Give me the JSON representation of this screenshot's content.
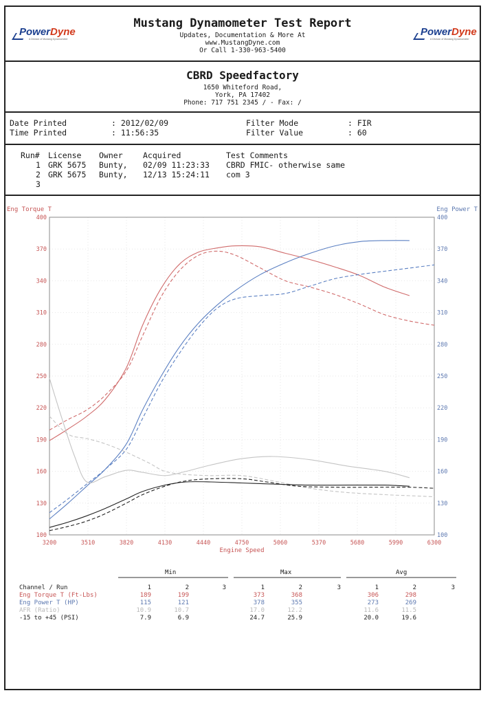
{
  "header": {
    "title": "Mustang Dynamometer Test Report",
    "line1": "Updates, Documentation & More At",
    "line2": "www.MustangDyne.com",
    "line3": "Or Call 1-330-963-5400",
    "logo_a": "Power",
    "logo_b": "Dyne",
    "logo_tag": "A Division of Mustang Dynamometer"
  },
  "shop": {
    "name": "CBRD Speedfactory",
    "address": "1650 Whiteford Road,",
    "city": "York, PA  17402",
    "phone": "Phone: 717 751 2345 /  - Fax:  /"
  },
  "meta": {
    "date_label": "Date Printed",
    "date_value": ": 2012/02/09",
    "time_label": "Time Printed",
    "time_value": ": 11:56:35",
    "filter_mode_label": "Filter Mode",
    "filter_mode_value": ": FIR",
    "filter_value_label": "Filter Value",
    "filter_value_value": ": 60"
  },
  "runs": {
    "headers": {
      "run": "Run#",
      "license": "License",
      "owner": "Owner",
      "acquired": "Acquired",
      "comments": "Test Comments"
    },
    "rows": [
      {
        "run": "1",
        "license": "GRK 5675",
        "owner": "Bunty,",
        "acquired": "02/09 11:23:33",
        "comments": "CBRD FMIC- otherwise same"
      },
      {
        "run": "2",
        "license": "GRK 5675",
        "owner": "Bunty,",
        "acquired": "12/13 15:24:11",
        "comments": "com 3"
      },
      {
        "run": "3",
        "license": "",
        "owner": "",
        "acquired": "",
        "comments": ""
      }
    ]
  },
  "chart_data": {
    "type": "line",
    "xlabel": "Engine Speed",
    "ylabel_left": "Eng Torque T",
    "ylabel_right": "Eng Power T",
    "xlim": [
      3200,
      6300
    ],
    "ylim": [
      100,
      400
    ],
    "x_ticks": [
      3200,
      3510,
      3820,
      4130,
      4440,
      4750,
      5060,
      5370,
      5680,
      5990,
      6300
    ],
    "y_ticks": [
      100,
      130,
      160,
      190,
      220,
      250,
      280,
      310,
      340,
      370,
      400
    ],
    "grid": true,
    "colors": {
      "torque": "#d06a6a",
      "power": "#5a7fc2",
      "afr": "#c4c4c4",
      "boost": "#222222"
    },
    "series": [
      {
        "name": "Eng Torque T (Ft-Lbs)",
        "run": 1,
        "style": "solid",
        "color": "#d06a6a",
        "x": [
          3200,
          3350,
          3500,
          3650,
          3820,
          3950,
          4100,
          4250,
          4400,
          4550,
          4700,
          4900,
          5100,
          5300,
          5500,
          5700,
          5900,
          6100
        ],
        "y": [
          189,
          200,
          212,
          228,
          258,
          298,
          333,
          356,
          367,
          371,
          373,
          372,
          366,
          360,
          353,
          345,
          334,
          326
        ]
      },
      {
        "name": "Eng Torque T (Ft-Lbs)",
        "run": 2,
        "style": "dashed",
        "color": "#d06a6a",
        "x": [
          3200,
          3350,
          3500,
          3650,
          3820,
          3950,
          4100,
          4250,
          4400,
          4550,
          4700,
          4900,
          5100,
          5300,
          5500,
          5700,
          5900,
          6100,
          6300
        ],
        "y": [
          199,
          209,
          218,
          232,
          255,
          288,
          325,
          350,
          364,
          368,
          364,
          352,
          340,
          334,
          327,
          318,
          308,
          302,
          298
        ]
      },
      {
        "name": "Eng Power T (HP)",
        "run": 1,
        "style": "solid",
        "color": "#5a7fc2",
        "x": [
          3200,
          3350,
          3500,
          3650,
          3820,
          3950,
          4100,
          4250,
          4400,
          4550,
          4700,
          4900,
          5100,
          5300,
          5500,
          5700,
          5900,
          6100
        ],
        "y": [
          115,
          130,
          146,
          162,
          186,
          218,
          250,
          278,
          300,
          317,
          331,
          346,
          357,
          366,
          373,
          377,
          378,
          378
        ]
      },
      {
        "name": "Eng Power T (HP)",
        "run": 2,
        "style": "dashed",
        "color": "#5a7fc2",
        "x": [
          3200,
          3350,
          3500,
          3650,
          3820,
          3950,
          4100,
          4250,
          4400,
          4550,
          4700,
          4900,
          5100,
          5300,
          5500,
          5700,
          5900,
          6100,
          6300
        ],
        "y": [
          121,
          134,
          148,
          162,
          181,
          210,
          244,
          272,
          296,
          314,
          323,
          326,
          328,
          335,
          342,
          346,
          349,
          352,
          355
        ]
      },
      {
        "name": "AFR (Ratio)",
        "run": 1,
        "style": "solid",
        "color": "#c4c4c4",
        "x": [
          3200,
          3300,
          3400,
          3500,
          3650,
          3820,
          3950,
          4130,
          4300,
          4500,
          4750,
          5000,
          5300,
          5600,
          5900,
          6100
        ],
        "y": [
          248,
          210,
          175,
          150,
          155,
          161,
          159,
          156,
          160,
          166,
          172,
          174,
          171,
          165,
          160,
          154
        ]
      },
      {
        "name": "AFR (Ratio)",
        "run": 2,
        "style": "dashed",
        "color": "#c4c4c4",
        "x": [
          3200,
          3350,
          3500,
          3650,
          3820,
          4000,
          4130,
          4300,
          4500,
          4750,
          5000,
          5300,
          5600,
          5900,
          6100,
          6300
        ],
        "y": [
          212,
          195,
          191,
          186,
          178,
          168,
          160,
          157,
          156,
          156,
          151,
          144,
          140,
          138,
          137,
          136
        ]
      },
      {
        "name": "-15 to +45 (PSI)",
        "run": 1,
        "style": "solid",
        "color": "#222222",
        "x": [
          3200,
          3350,
          3500,
          3650,
          3820,
          3950,
          4130,
          4300,
          4500,
          4750,
          5000,
          5300,
          5600,
          5900,
          6100
        ],
        "y": [
          107,
          112,
          118,
          125,
          134,
          141,
          147,
          150,
          150,
          149,
          148,
          147,
          147,
          147,
          146
        ]
      },
      {
        "name": "-15 to +45 (PSI)",
        "run": 2,
        "style": "dashed",
        "color": "#222222",
        "x": [
          3200,
          3350,
          3500,
          3650,
          3820,
          3950,
          4130,
          4300,
          4500,
          4750,
          4950,
          5200,
          5500,
          5800,
          6100,
          6300
        ],
        "y": [
          104,
          108,
          113,
          120,
          130,
          138,
          146,
          151,
          153,
          153,
          150,
          146,
          145,
          145,
          145,
          144
        ]
      }
    ]
  },
  "stats": {
    "headers": {
      "min": "Min",
      "max": "Max",
      "avg": "Avg"
    },
    "channel_label": "Channel / Run",
    "runs": [
      "1",
      "2",
      "3"
    ],
    "rows": [
      {
        "name": "Eng Torque T (Ft-Lbs)",
        "color": "#c65454",
        "min": [
          "189",
          "199"
        ],
        "max": [
          "373",
          "368"
        ],
        "avg": [
          "306",
          "298"
        ]
      },
      {
        "name": "Eng Power T (HP)",
        "color": "#5c78b0",
        "min": [
          "115",
          "121"
        ],
        "max": [
          "378",
          "355"
        ],
        "avg": [
          "273",
          "269"
        ]
      },
      {
        "name": "AFR (Ratio)",
        "color": "#b9b9b9",
        "min": [
          "10.9",
          "10.7"
        ],
        "max": [
          "17.0",
          "12.2"
        ],
        "avg": [
          "11.6",
          "11.5"
        ]
      },
      {
        "name": "-15 to +45 (PSI)",
        "color": "#222222",
        "min": [
          "7.9",
          "6.9"
        ],
        "max": [
          "24.7",
          "25.9"
        ],
        "avg": [
          "20.0",
          "19.6"
        ]
      }
    ]
  }
}
